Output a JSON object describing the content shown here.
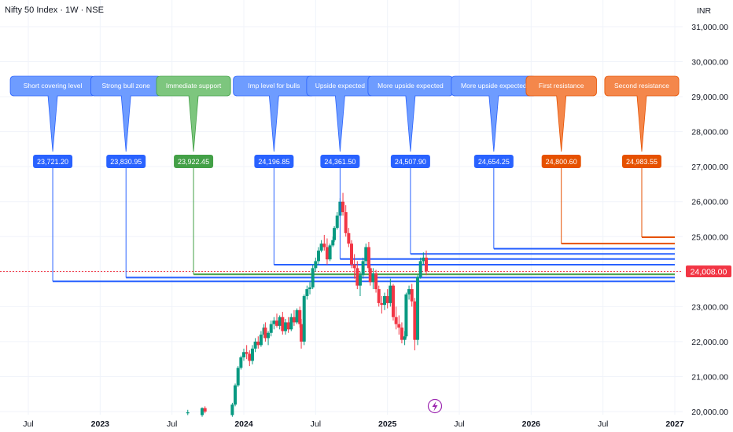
{
  "header": {
    "title": "Nifty 50 Index · 1W · NSE",
    "currency": "INR"
  },
  "chart_data": {
    "type": "candlestick",
    "y_axis": {
      "min": 20000,
      "max": 31000,
      "ticks": [
        "20,000.00",
        "21,000.00",
        "22,000.00",
        "23,000.00",
        "24,000.00",
        "25,000.00",
        "26,000.00",
        "27,000.00",
        "28,000.00",
        "29,000.00",
        "30,000.00",
        "31,000.00"
      ],
      "tick_values": [
        20000,
        21000,
        22000,
        23000,
        24000,
        25000,
        26000,
        27000,
        28000,
        29000,
        30000,
        31000
      ]
    },
    "x_axis": {
      "labels": [
        {
          "text": "Jul",
          "year": false,
          "date": 2022.5
        },
        {
          "text": "2023",
          "year": true,
          "date": 2023.0
        },
        {
          "text": "Jul",
          "year": false,
          "date": 2023.5
        },
        {
          "text": "2024",
          "year": true,
          "date": 2024.0
        },
        {
          "text": "Jul",
          "year": false,
          "date": 2024.5
        },
        {
          "text": "2025",
          "year": true,
          "date": 2025.0
        },
        {
          "text": "Jul",
          "year": false,
          "date": 2025.5
        },
        {
          "text": "2026",
          "year": true,
          "date": 2026.0
        },
        {
          "text": "Jul",
          "year": false,
          "date": 2026.5
        },
        {
          "text": "2027",
          "year": true,
          "date": 2027.0
        }
      ]
    },
    "last_price": {
      "label": "24,008.00",
      "value": 24008,
      "color": "#f23645"
    },
    "levels": [
      {
        "label": "Short covering level",
        "price": 23721.2,
        "price_label": "23,721.20",
        "date": 2022.67,
        "color": "#2962ff",
        "box_color": "#6e9cff"
      },
      {
        "label": "Strong bull zone",
        "price": 23830.95,
        "price_label": "23,830.95",
        "date": 2023.18,
        "color": "#2962ff",
        "box_color": "#6e9cff"
      },
      {
        "label": "Immediate support",
        "price": 23922.45,
        "price_label": "23,922.45",
        "date": 2023.65,
        "color": "#43a047",
        "box_color": "#7dc67e"
      },
      {
        "label": "Imp level for bulls",
        "price": 24196.85,
        "price_label": "24,196.85",
        "date": 2024.21,
        "color": "#2962ff",
        "box_color": "#6e9cff"
      },
      {
        "label": "Upside expected",
        "price": 24361.5,
        "price_label": "24,361.50",
        "date": 2024.67,
        "color": "#2962ff",
        "box_color": "#6e9cff"
      },
      {
        "label": "More upside expected",
        "price": 24507.9,
        "price_label": "24,507.90",
        "date": 2025.16,
        "color": "#2962ff",
        "box_color": "#6e9cff"
      },
      {
        "label": "More upside expected",
        "price": 24654.25,
        "price_label": "24,654.25",
        "date": 2025.74,
        "color": "#2962ff",
        "box_color": "#6e9cff"
      },
      {
        "label": "First resistance",
        "price": 24800.6,
        "price_label": "24,800.60",
        "date": 2026.21,
        "color": "#e65100",
        "box_color": "#f4874b"
      },
      {
        "label": "Second resistance",
        "price": 24983.55,
        "price_label": "24,983.55",
        "date": 2026.77,
        "color": "#e65100",
        "box_color": "#f4874b"
      }
    ],
    "colors": {
      "up": "#089981",
      "down": "#f23645"
    },
    "candles": [
      {
        "d": 2023.61,
        "o": 19950,
        "h": 20050,
        "l": 19900,
        "c": 19980
      },
      {
        "d": 2023.71,
        "o": 19900,
        "h": 20120,
        "l": 19850,
        "c": 20100
      },
      {
        "d": 2023.73,
        "o": 20100,
        "h": 20150,
        "l": 19950,
        "c": 20000
      },
      {
        "d": 2023.92,
        "o": 19900,
        "h": 20250,
        "l": 19850,
        "c": 20200
      },
      {
        "d": 2023.94,
        "o": 20200,
        "h": 20800,
        "l": 20150,
        "c": 20750
      },
      {
        "d": 2023.96,
        "o": 20750,
        "h": 21300,
        "l": 20700,
        "c": 21250
      },
      {
        "d": 2023.98,
        "o": 21250,
        "h": 21600,
        "l": 21200,
        "c": 21550
      },
      {
        "d": 2024.0,
        "o": 21550,
        "h": 21800,
        "l": 21450,
        "c": 21700
      },
      {
        "d": 2024.02,
        "o": 21700,
        "h": 21900,
        "l": 21500,
        "c": 21650
      },
      {
        "d": 2024.04,
        "o": 21650,
        "h": 21750,
        "l": 21300,
        "c": 21450
      },
      {
        "d": 2024.06,
        "o": 21450,
        "h": 21900,
        "l": 21350,
        "c": 21800
      },
      {
        "d": 2024.08,
        "o": 21800,
        "h": 22100,
        "l": 21700,
        "c": 22000
      },
      {
        "d": 2024.1,
        "o": 22000,
        "h": 22150,
        "l": 21800,
        "c": 21900
      },
      {
        "d": 2024.12,
        "o": 21900,
        "h": 22300,
        "l": 21850,
        "c": 22200
      },
      {
        "d": 2024.14,
        "o": 22200,
        "h": 22500,
        "l": 22100,
        "c": 22400
      },
      {
        "d": 2024.15,
        "o": 22400,
        "h": 22550,
        "l": 22000,
        "c": 22100
      },
      {
        "d": 2024.17,
        "o": 22100,
        "h": 22300,
        "l": 21900,
        "c": 22250
      },
      {
        "d": 2024.19,
        "o": 22250,
        "h": 22600,
        "l": 22150,
        "c": 22500
      },
      {
        "d": 2024.21,
        "o": 22500,
        "h": 22700,
        "l": 22350,
        "c": 22600
      },
      {
        "d": 2024.23,
        "o": 22600,
        "h": 22800,
        "l": 22400,
        "c": 22450
      },
      {
        "d": 2024.25,
        "o": 22450,
        "h": 22750,
        "l": 22350,
        "c": 22700
      },
      {
        "d": 2024.27,
        "o": 22700,
        "h": 22850,
        "l": 22200,
        "c": 22300
      },
      {
        "d": 2024.29,
        "o": 22300,
        "h": 22650,
        "l": 22200,
        "c": 22550
      },
      {
        "d": 2024.31,
        "o": 22550,
        "h": 22700,
        "l": 22250,
        "c": 22350
      },
      {
        "d": 2024.33,
        "o": 22350,
        "h": 22800,
        "l": 22300,
        "c": 22700
      },
      {
        "d": 2024.35,
        "o": 22700,
        "h": 22900,
        "l": 22450,
        "c": 22550
      },
      {
        "d": 2024.37,
        "o": 22550,
        "h": 22950,
        "l": 22500,
        "c": 22900
      },
      {
        "d": 2024.39,
        "o": 22900,
        "h": 23000,
        "l": 22400,
        "c": 22500
      },
      {
        "d": 2024.4,
        "o": 22500,
        "h": 22650,
        "l": 21800,
        "c": 22000
      },
      {
        "d": 2024.42,
        "o": 22000,
        "h": 23350,
        "l": 21900,
        "c": 23300
      },
      {
        "d": 2024.44,
        "o": 23300,
        "h": 23600,
        "l": 23200,
        "c": 23500
      },
      {
        "d": 2024.46,
        "o": 23500,
        "h": 23700,
        "l": 23350,
        "c": 23550
      },
      {
        "d": 2024.48,
        "o": 23550,
        "h": 24200,
        "l": 23500,
        "c": 24100
      },
      {
        "d": 2024.5,
        "o": 24100,
        "h": 24400,
        "l": 24000,
        "c": 24300
      },
      {
        "d": 2024.52,
        "o": 24300,
        "h": 24700,
        "l": 24200,
        "c": 24600
      },
      {
        "d": 2024.54,
        "o": 24600,
        "h": 24900,
        "l": 24550,
        "c": 24800
      },
      {
        "d": 2024.56,
        "o": 24800,
        "h": 25050,
        "l": 24600,
        "c": 24700
      },
      {
        "d": 2024.58,
        "o": 24700,
        "h": 24950,
        "l": 24200,
        "c": 24350
      },
      {
        "d": 2024.6,
        "o": 24350,
        "h": 24800,
        "l": 24300,
        "c": 24750
      },
      {
        "d": 2024.62,
        "o": 24750,
        "h": 25000,
        "l": 24700,
        "c": 24900
      },
      {
        "d": 2024.63,
        "o": 24900,
        "h": 25300,
        "l": 24850,
        "c": 25250
      },
      {
        "d": 2024.65,
        "o": 25250,
        "h": 25700,
        "l": 25200,
        "c": 25600
      },
      {
        "d": 2024.67,
        "o": 25600,
        "h": 26100,
        "l": 25550,
        "c": 26000
      },
      {
        "d": 2024.69,
        "o": 26000,
        "h": 26250,
        "l": 25600,
        "c": 25700
      },
      {
        "d": 2024.71,
        "o": 25700,
        "h": 25900,
        "l": 25000,
        "c": 25100
      },
      {
        "d": 2024.73,
        "o": 25100,
        "h": 25250,
        "l": 24700,
        "c": 24800
      },
      {
        "d": 2024.75,
        "o": 24800,
        "h": 24900,
        "l": 24100,
        "c": 24200
      },
      {
        "d": 2024.77,
        "o": 24200,
        "h": 24500,
        "l": 23800,
        "c": 24100
      },
      {
        "d": 2024.79,
        "o": 24100,
        "h": 24300,
        "l": 23500,
        "c": 23600
      },
      {
        "d": 2024.81,
        "o": 23600,
        "h": 24000,
        "l": 23300,
        "c": 23900
      },
      {
        "d": 2024.83,
        "o": 23900,
        "h": 24400,
        "l": 23800,
        "c": 24300
      },
      {
        "d": 2024.85,
        "o": 24300,
        "h": 24800,
        "l": 24200,
        "c": 24700
      },
      {
        "d": 2024.87,
        "o": 24700,
        "h": 24850,
        "l": 24000,
        "c": 24100
      },
      {
        "d": 2024.88,
        "o": 24100,
        "h": 24200,
        "l": 23600,
        "c": 23700
      },
      {
        "d": 2024.9,
        "o": 23700,
        "h": 24100,
        "l": 23500,
        "c": 23950
      },
      {
        "d": 2024.92,
        "o": 23950,
        "h": 24050,
        "l": 23400,
        "c": 23500
      },
      {
        "d": 2024.94,
        "o": 23500,
        "h": 23600,
        "l": 23000,
        "c": 23100
      },
      {
        "d": 2024.96,
        "o": 23100,
        "h": 23300,
        "l": 22800,
        "c": 23050
      },
      {
        "d": 2024.98,
        "o": 23050,
        "h": 23400,
        "l": 22900,
        "c": 23300
      },
      {
        "d": 2025.0,
        "o": 23300,
        "h": 23500,
        "l": 22950,
        "c": 23100
      },
      {
        "d": 2025.02,
        "o": 23100,
        "h": 23800,
        "l": 23000,
        "c": 23600
      },
      {
        "d": 2025.04,
        "o": 23600,
        "h": 23650,
        "l": 22600,
        "c": 22700
      },
      {
        "d": 2025.06,
        "o": 22700,
        "h": 23000,
        "l": 22350,
        "c": 22500
      },
      {
        "d": 2025.08,
        "o": 22500,
        "h": 22750,
        "l": 22200,
        "c": 22400
      },
      {
        "d": 2025.1,
        "o": 22400,
        "h": 22550,
        "l": 21950,
        "c": 22050
      },
      {
        "d": 2025.12,
        "o": 22050,
        "h": 22300,
        "l": 21900,
        "c": 22150
      },
      {
        "d": 2025.13,
        "o": 22150,
        "h": 23400,
        "l": 22100,
        "c": 23350
      },
      {
        "d": 2025.15,
        "o": 23350,
        "h": 23600,
        "l": 23200,
        "c": 23500
      },
      {
        "d": 2025.17,
        "o": 23500,
        "h": 23650,
        "l": 23000,
        "c": 23150
      },
      {
        "d": 2025.19,
        "o": 23150,
        "h": 23250,
        "l": 21750,
        "c": 22050
      },
      {
        "d": 2025.21,
        "o": 22050,
        "h": 23900,
        "l": 21900,
        "c": 23850
      },
      {
        "d": 2025.23,
        "o": 23850,
        "h": 24400,
        "l": 23800,
        "c": 24300
      },
      {
        "d": 2025.25,
        "o": 24300,
        "h": 24550,
        "l": 24200,
        "c": 24400
      },
      {
        "d": 2025.27,
        "o": 24400,
        "h": 24600,
        "l": 23900,
        "c": 24008
      }
    ]
  }
}
